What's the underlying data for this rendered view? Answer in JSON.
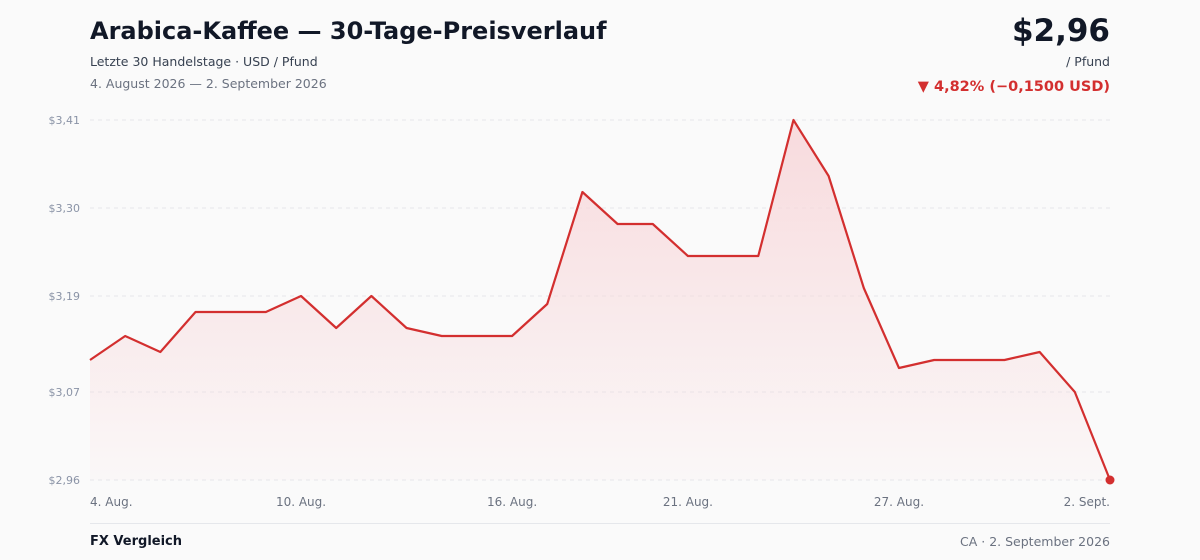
{
  "header": {
    "title": "Arabica-Kaffee — 30-Tage-Preisverlauf",
    "subtitle": "Letzte 30 Handelstage · USD / Pfund",
    "date_range": "4. August 2026 — 2. September 2026",
    "price": "$2,96",
    "unit": "/ Pfund",
    "change_arrow": "▼",
    "change_text": "4,82% (−0,1500 USD)"
  },
  "footer": {
    "brand": "FX Vergleich",
    "stamp": "CA · 2. September 2026"
  },
  "colors": {
    "line": "#d32f2f",
    "fill": "#f8d7da",
    "grid": "#e5e7eb",
    "tick": "#8a93a6"
  },
  "chart_data": {
    "type": "area",
    "x": [
      "4. Aug.",
      "5. Aug.",
      "6. Aug.",
      "7. Aug.",
      "8. Aug.",
      "9. Aug.",
      "10. Aug.",
      "11. Aug.",
      "12. Aug.",
      "13. Aug.",
      "14. Aug.",
      "15. Aug.",
      "16. Aug.",
      "17. Aug.",
      "18. Aug.",
      "19. Aug.",
      "20. Aug.",
      "21. Aug.",
      "22. Aug.",
      "23. Aug.",
      "24. Aug.",
      "25. Aug.",
      "26. Aug.",
      "27. Aug.",
      "28. Aug.",
      "29. Aug.",
      "30. Aug.",
      "31. Aug.",
      "1. Sept.",
      "2. Sept."
    ],
    "values": [
      3.11,
      3.14,
      3.12,
      3.17,
      3.17,
      3.17,
      3.19,
      3.15,
      3.19,
      3.15,
      3.14,
      3.14,
      3.14,
      3.18,
      3.32,
      3.28,
      3.28,
      3.24,
      3.24,
      3.24,
      3.41,
      3.34,
      3.2,
      3.1,
      3.11,
      3.11,
      3.11,
      3.12,
      3.07,
      2.96
    ],
    "ylim": [
      2.96,
      3.41
    ],
    "yticks": [
      "$2,96",
      "$3,07",
      "$3,19",
      "$3,30",
      "$3,41"
    ],
    "ytick_values": [
      2.96,
      3.07,
      3.19,
      3.3,
      3.41
    ],
    "xtick_labels": [
      "4. Aug.",
      "10. Aug.",
      "16. Aug.",
      "21. Aug.",
      "27. Aug.",
      "2. Sept."
    ],
    "xtick_indices": [
      0,
      6,
      12,
      17,
      23,
      29
    ],
    "grid": true,
    "legend": false
  }
}
